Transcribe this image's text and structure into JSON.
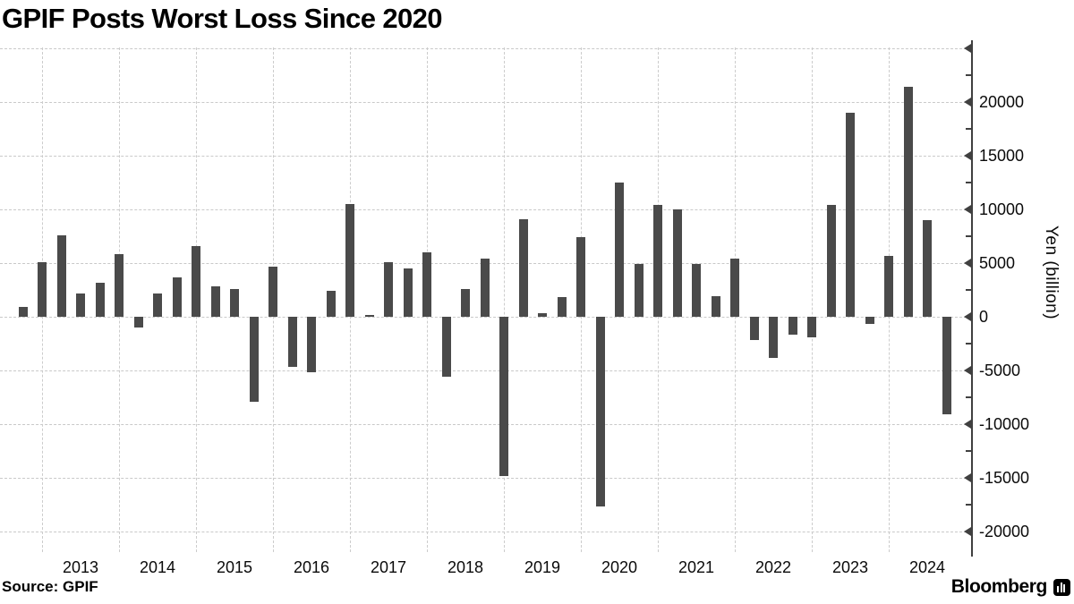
{
  "title": "GPIF Posts Worst Loss Since 2020",
  "source_label": "Source: GPIF",
  "brand": {
    "name": "Bloomberg",
    "icon": "bloomberg-terminal-icon"
  },
  "colors": {
    "bar": "#4a4a4a",
    "grid": "#c9c9c9",
    "axis": "#404040",
    "text": "#0a0a0a",
    "background": "#ffffff"
  },
  "y_axis": {
    "title": "Yen (billion)",
    "labeled_ticks": [
      20000,
      15000,
      10000,
      5000,
      0,
      -5000,
      -10000,
      -15000,
      -20000
    ],
    "unlabeled_top_gridline": 25000,
    "minor_ticks": [
      22500,
      17500,
      12500,
      7500,
      2500,
      -2500,
      -7500,
      -12500,
      -17500
    ],
    "side": "right"
  },
  "x_axis": {
    "year_labels": [
      "2013",
      "2014",
      "2015",
      "2016",
      "2017",
      "2018",
      "2019",
      "2020",
      "2021",
      "2022",
      "2023",
      "2024"
    ]
  },
  "chart_data": {
    "type": "bar",
    "title": "GPIF Posts Worst Loss Since 2020",
    "xlabel": "",
    "ylabel": "Yen (billion)",
    "ylim": [
      -20000,
      25000
    ],
    "grid": "dashed, horizontal every 5000 and vertical at each year start",
    "legend": "none",
    "unit": "billion yen",
    "series": [
      {
        "name": "GPIF quarterly investment gain/loss",
        "points": [
          {
            "p": "Jul-Sep 2012",
            "v": 900
          },
          {
            "p": "Oct-Dec 2012",
            "v": 5100
          },
          {
            "p": "Jan-Mar 2013",
            "v": 7600
          },
          {
            "p": "Apr-Jun 2013",
            "v": 2200
          },
          {
            "p": "Jul-Sep 2013",
            "v": 3200
          },
          {
            "p": "Oct-Dec 2013",
            "v": 5800
          },
          {
            "p": "Jan-Mar 2014",
            "v": -1000
          },
          {
            "p": "Apr-Jun 2014",
            "v": 2200
          },
          {
            "p": "Jul-Sep 2014",
            "v": 3700
          },
          {
            "p": "Oct-Dec 2014",
            "v": 6600
          },
          {
            "p": "Jan-Mar 2015",
            "v": 2800
          },
          {
            "p": "Apr-Jun 2015",
            "v": 2600
          },
          {
            "p": "Jul-Sep 2015",
            "v": -7900
          },
          {
            "p": "Oct-Dec 2015",
            "v": 4700
          },
          {
            "p": "Jan-Mar 2016",
            "v": -4700
          },
          {
            "p": "Apr-Jun 2016",
            "v": -5200
          },
          {
            "p": "Jul-Sep 2016",
            "v": 2400
          },
          {
            "p": "Oct-Dec 2016",
            "v": 10500
          },
          {
            "p": "Jan-Mar 2017",
            "v": 200
          },
          {
            "p": "Apr-Jun 2017",
            "v": 5100
          },
          {
            "p": "Jul-Sep 2017",
            "v": 4500
          },
          {
            "p": "Oct-Dec 2017",
            "v": 6000
          },
          {
            "p": "Jan-Mar 2018",
            "v": -5600
          },
          {
            "p": "Apr-Jun 2018",
            "v": 2600
          },
          {
            "p": "Jul-Sep 2018",
            "v": 5400
          },
          {
            "p": "Oct-Dec 2018",
            "v": -14800
          },
          {
            "p": "Jan-Mar 2019",
            "v": 9100
          },
          {
            "p": "Apr-Jun 2019",
            "v": 300
          },
          {
            "p": "Jul-Sep 2019",
            "v": 1800
          },
          {
            "p": "Oct-Dec 2019",
            "v": 7400
          },
          {
            "p": "Jan-Mar 2020",
            "v": -17700
          },
          {
            "p": "Apr-Jun 2020",
            "v": 12500
          },
          {
            "p": "Jul-Sep 2020",
            "v": 4900
          },
          {
            "p": "Oct-Dec 2020",
            "v": 10400
          },
          {
            "p": "Jan-Mar 2021",
            "v": 10000
          },
          {
            "p": "Apr-Jun 2021",
            "v": 4900
          },
          {
            "p": "Jul-Sep 2021",
            "v": 1900
          },
          {
            "p": "Oct-Dec 2021",
            "v": 5400
          },
          {
            "p": "Jan-Mar 2022",
            "v": -2200
          },
          {
            "p": "Apr-Jun 2022",
            "v": -3800
          },
          {
            "p": "Jul-Sep 2022",
            "v": -1700
          },
          {
            "p": "Oct-Dec 2022",
            "v": -1900
          },
          {
            "p": "Jan-Mar 2023",
            "v": 10400
          },
          {
            "p": "Apr-Jun 2023",
            "v": 19000
          },
          {
            "p": "Jul-Sep 2023",
            "v": -700
          },
          {
            "p": "Oct-Dec 2023",
            "v": 5700
          },
          {
            "p": "Jan-Mar 2024",
            "v": 21400
          },
          {
            "p": "Apr-Jun 2024",
            "v": 9000
          },
          {
            "p": "Jul-Sep 2024",
            "v": -9100
          }
        ]
      }
    ]
  }
}
